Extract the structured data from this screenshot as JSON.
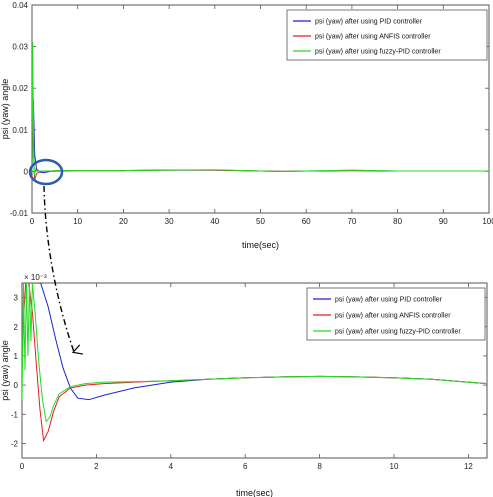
{
  "chart_data": [
    {
      "type": "line",
      "title": "",
      "xlabel": "time(sec)",
      "ylabel": "psi (yaw) angle",
      "xlim": [
        0,
        100
      ],
      "ylim": [
        -0.01,
        0.04
      ],
      "xticks": [
        0,
        10,
        20,
        30,
        40,
        50,
        60,
        70,
        80,
        90,
        100
      ],
      "yticks": [
        -0.01,
        0,
        0.01,
        0.02,
        0.03,
        0.04
      ],
      "ytick_labels": [
        "-0.01",
        "0",
        "0.01",
        "0.02",
        "0.03",
        "0.04"
      ],
      "legend_position": "top-right",
      "grid": false,
      "series": [
        {
          "name": "psi (yaw) after using PID controller",
          "color": "#1f1fd0",
          "x": [
            0,
            0.3,
            0.6,
            1,
            2,
            3,
            4,
            6,
            10,
            20,
            30,
            40,
            50,
            55,
            60,
            70,
            80,
            90,
            100
          ],
          "y": [
            0,
            0.017,
            0.004,
            0.0005,
            -0.0003,
            -0.0002,
            0,
            0.0001,
            0.0002,
            0.0002,
            0.0003,
            0.0003,
            0.0001,
            0,
            0.0001,
            0.0002,
            0.0001,
            0.0001,
            0.0001
          ]
        },
        {
          "name": "psi (yaw) after using ANFIS controller",
          "color": "#e02020",
          "x": [
            0,
            0.2,
            0.4,
            0.6,
            1,
            2,
            4,
            6,
            10,
            20,
            30,
            40,
            50,
            55,
            60,
            70,
            80,
            90,
            100
          ],
          "y": [
            0,
            0.021,
            0.002,
            -0.002,
            -0.0005,
            0,
            0.0001,
            0.0002,
            0.0002,
            0.0002,
            0.0003,
            0.0003,
            0.0001,
            0,
            0.0001,
            0.0002,
            0.0001,
            0.0001,
            0.0001
          ]
        },
        {
          "name": "psi (yaw) after using fuzzy-PID controller",
          "color": "#22dd22",
          "x": [
            0,
            0.15,
            0.3,
            0.5,
            0.8,
            1,
            2,
            4,
            6,
            10,
            20,
            30,
            40,
            50,
            55,
            60,
            70,
            80,
            90,
            100
          ],
          "y": [
            0,
            0.031,
            0.012,
            -0.001,
            0.0005,
            0,
            0.0001,
            0.0001,
            0.0002,
            0.0002,
            0.0002,
            0.0003,
            0.0004,
            0.0001,
            0,
            0.0001,
            0.0003,
            0.0001,
            0.0001,
            0.0001
          ]
        }
      ]
    },
    {
      "type": "line",
      "title": "",
      "xlabel": "time(sec)",
      "ylabel": "psi (yaw) angle",
      "y_multiplier": "× 10⁻³",
      "xlim": [
        0,
        12.5
      ],
      "ylim": [
        -2.5,
        3.5
      ],
      "xticks": [
        0,
        2,
        4,
        6,
        8,
        10,
        12
      ],
      "yticks": [
        -2,
        -1,
        0,
        1,
        2,
        3
      ],
      "ytick_labels": [
        "-2",
        "-1",
        "0",
        "1",
        "2",
        "3"
      ],
      "legend_position": "top-right",
      "grid": false,
      "series": [
        {
          "name": "psi (yaw) after using PID controller",
          "color": "#1f1fd0",
          "x": [
            0,
            0.1,
            0.3,
            0.5,
            0.7,
            0.9,
            1.1,
            1.3,
            1.5,
            1.8,
            2.2,
            3,
            4,
            5,
            6,
            7,
            8,
            9,
            10,
            11,
            12.5
          ],
          "y": [
            3.5,
            3.5,
            3.5,
            3.5,
            2.7,
            1.6,
            0.6,
            -0.1,
            -0.45,
            -0.5,
            -0.35,
            -0.1,
            0.1,
            0.2,
            0.25,
            0.28,
            0.3,
            0.28,
            0.25,
            0.2,
            0.05
          ]
        },
        {
          "name": "psi (yaw) after using ANFIS controller",
          "color": "#e02020",
          "x": [
            0,
            0.05,
            0.1,
            0.18,
            0.28,
            0.38,
            0.48,
            0.58,
            0.7,
            0.85,
            1,
            1.3,
            1.7,
            2.2,
            3,
            4,
            5,
            6,
            7,
            8,
            9,
            10,
            11,
            12.5
          ],
          "y": [
            0.5,
            2.5,
            3.5,
            3.5,
            2.5,
            0.8,
            -0.8,
            -1.9,
            -1.6,
            -0.9,
            -0.4,
            -0.1,
            0,
            0.05,
            0.1,
            0.15,
            0.2,
            0.25,
            0.28,
            0.3,
            0.28,
            0.25,
            0.2,
            0.05
          ]
        },
        {
          "name": "psi (yaw) after using fuzzy-PID controller",
          "color": "#22dd22",
          "x": [
            0,
            0.04,
            0.08,
            0.12,
            0.16,
            0.2,
            0.24,
            0.28,
            0.35,
            0.45,
            0.55,
            0.65,
            0.75,
            0.85,
            1,
            1.3,
            1.7,
            2.2,
            3,
            4,
            5,
            6,
            7,
            8,
            9,
            10,
            11,
            12.5
          ],
          "y": [
            -0.5,
            3.5,
            0.5,
            3.5,
            1,
            3.5,
            1.5,
            3.5,
            2.5,
            0.8,
            -0.5,
            -1.25,
            -1.1,
            -0.7,
            -0.3,
            -0.05,
            0.05,
            0.1,
            0.12,
            0.15,
            0.2,
            0.25,
            0.28,
            0.3,
            0.28,
            0.25,
            0.2,
            0.05
          ]
        }
      ]
    }
  ]
}
